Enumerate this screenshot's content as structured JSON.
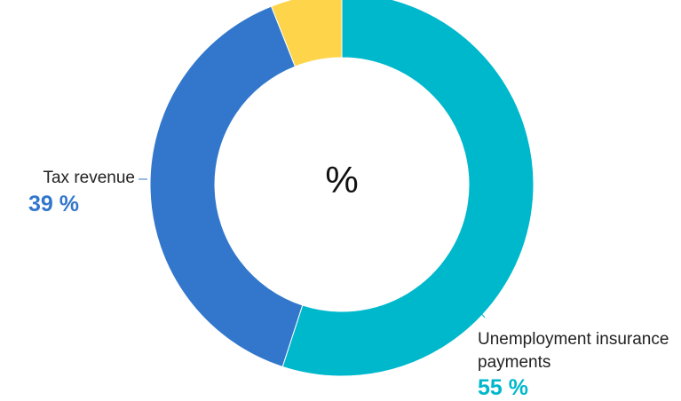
{
  "chart_data": {
    "type": "donut",
    "center_text": "%",
    "categories": [
      "Unemployment insurance payments",
      "Tax revenue",
      null
    ],
    "values": [
      55,
      39,
      6
    ],
    "value_labels": [
      "55 %",
      "39 %",
      null
    ],
    "colors": [
      "#00b8cc",
      "#3277cc",
      "#fdd44a"
    ]
  }
}
